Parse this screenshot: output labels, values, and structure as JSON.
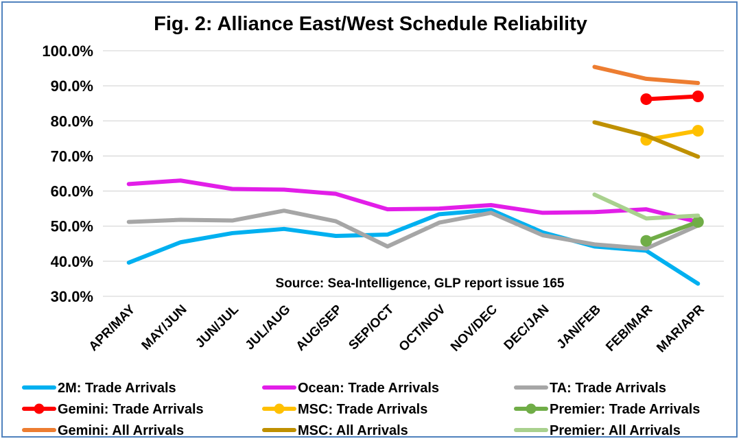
{
  "chart_data": {
    "type": "line",
    "title": "Fig. 2: Alliance East/West Schedule Reliability",
    "annotation": "Source: Sea-Intelligence, GLP report issue 165",
    "categories": [
      "APR/MAY",
      "MAY/JUN",
      "JUN/JUL",
      "JUL/AUG",
      "AUG/SEP",
      "SEP/OCT",
      "OCT/NOV",
      "NOV/DEC",
      "DEC/JAN",
      "JAN/FEB",
      "FEB/MAR",
      "MAR/APR"
    ],
    "y_tick_labels": [
      "100.0%",
      "90.0%",
      "80.0%",
      "70.0%",
      "60.0%",
      "50.0%",
      "40.0%",
      "30.0%"
    ],
    "ylim": [
      30,
      100
    ],
    "grid": true,
    "legend_position": "bottom",
    "series": [
      {
        "name": "2M: Trade Arrivals",
        "color": "#00b0f0",
        "markers": false,
        "values": [
          39.6,
          45.4,
          48.0,
          49.2,
          47.2,
          47.6,
          53.4,
          54.6,
          48.2,
          44.2,
          43.0,
          33.6
        ]
      },
      {
        "name": "Ocean: Trade Arrivals",
        "color": "#e21ee8",
        "markers": false,
        "values": [
          62.0,
          63.0,
          60.6,
          60.4,
          59.2,
          54.8,
          55.0,
          56.0,
          53.8,
          54.0,
          54.8,
          51.2
        ]
      },
      {
        "name": "TA: Trade Arrivals",
        "color": "#a6a6a6",
        "markers": false,
        "values": [
          51.2,
          51.8,
          51.6,
          54.4,
          51.4,
          44.2,
          51.0,
          53.8,
          47.4,
          44.8,
          43.6,
          50.2
        ]
      },
      {
        "name": "Gemini: Trade Arrivals",
        "color": "#ff0000",
        "markers": true,
        "values": [
          null,
          null,
          null,
          null,
          null,
          null,
          null,
          null,
          null,
          null,
          86.2,
          87.0
        ]
      },
      {
        "name": "MSC: Trade Arrivals",
        "color": "#ffc000",
        "markers": true,
        "values": [
          null,
          null,
          null,
          null,
          null,
          null,
          null,
          null,
          null,
          null,
          74.6,
          77.2
        ]
      },
      {
        "name": "Premier: Trade Arrivals",
        "color": "#70ad47",
        "markers": true,
        "values": [
          null,
          null,
          null,
          null,
          null,
          null,
          null,
          null,
          null,
          null,
          45.8,
          51.2
        ]
      },
      {
        "name": "Gemini: All Arrivals",
        "color": "#ed7d31",
        "markers": false,
        "values": [
          null,
          null,
          null,
          null,
          null,
          null,
          null,
          null,
          null,
          95.4,
          92.0,
          90.8
        ]
      },
      {
        "name": "MSC: All Arrivals",
        "color": "#bf9000",
        "markers": false,
        "values": [
          null,
          null,
          null,
          null,
          null,
          null,
          null,
          null,
          null,
          79.6,
          75.8,
          69.8
        ]
      },
      {
        "name": "Premier: All Arrivals",
        "color": "#a9d18e",
        "markers": false,
        "values": [
          null,
          null,
          null,
          null,
          null,
          null,
          null,
          null,
          null,
          59.0,
          52.2,
          53.0
        ]
      }
    ]
  }
}
